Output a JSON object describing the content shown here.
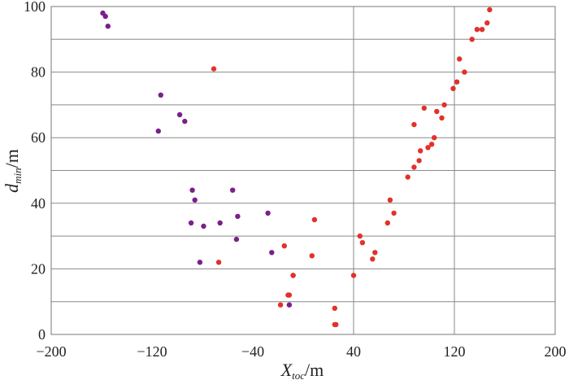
{
  "chart_data": {
    "type": "scatter",
    "title": "",
    "xlabel": {
      "main": "X",
      "sub": "toc",
      "unit": "/m"
    },
    "ylabel": {
      "main": "d",
      "sub": "min",
      "unit": "/m"
    },
    "xlim": [
      -200,
      200
    ],
    "ylim": [
      0,
      100
    ],
    "x_ticks": [
      -200,
      -120,
      -40,
      40,
      120,
      200
    ],
    "x_tick_labels": [
      "−200",
      "−120",
      "−40",
      "40",
      "120",
      "200"
    ],
    "y_ticks": [
      0,
      20,
      40,
      60,
      80,
      100
    ],
    "y_tick_labels": [
      "0",
      "20",
      "40",
      "60",
      "80",
      "100"
    ],
    "grid": {
      "horizontal_every": 10,
      "vertical_at": [
        40,
        120
      ]
    },
    "series": [
      {
        "color": "#7b1f8c",
        "points": [
          [
            -159,
            98
          ],
          [
            -157,
            97
          ],
          [
            -155,
            94
          ],
          [
            -113,
            73
          ],
          [
            -115,
            62
          ],
          [
            -98,
            67
          ],
          [
            -94,
            65
          ],
          [
            -88,
            44
          ],
          [
            -86,
            41
          ],
          [
            -89,
            34
          ],
          [
            -82,
            22
          ],
          [
            -79,
            33
          ],
          [
            -66,
            34
          ],
          [
            -56,
            44
          ],
          [
            -52,
            36
          ],
          [
            -53,
            29
          ],
          [
            -28,
            37
          ],
          [
            -25,
            25
          ],
          [
            -11,
            9
          ]
        ]
      },
      {
        "color": "#e2312b",
        "points": [
          [
            -71,
            81
          ],
          [
            -67,
            22
          ],
          [
            -15,
            27
          ],
          [
            -18,
            9
          ],
          [
            -8,
            18
          ],
          [
            -8,
            18
          ],
          [
            7,
            24
          ],
          [
            9,
            35
          ],
          [
            -11,
            12
          ],
          [
            -12,
            12
          ],
          [
            25,
            8
          ],
          [
            25,
            3
          ],
          [
            26,
            3
          ],
          [
            40,
            18
          ],
          [
            45,
            30
          ],
          [
            47,
            28
          ],
          [
            55,
            23
          ],
          [
            57,
            25
          ],
          [
            67,
            34
          ],
          [
            69,
            41
          ],
          [
            72,
            37
          ],
          [
            83,
            48
          ],
          [
            88,
            51
          ],
          [
            88,
            64
          ],
          [
            92,
            53
          ],
          [
            93,
            56
          ],
          [
            96,
            69
          ],
          [
            99,
            57
          ],
          [
            102,
            58
          ],
          [
            104,
            60
          ],
          [
            106,
            68
          ],
          [
            110,
            66
          ],
          [
            112,
            70
          ],
          [
            119,
            75
          ],
          [
            122,
            77
          ],
          [
            124,
            84
          ],
          [
            128,
            80
          ],
          [
            134,
            90
          ],
          [
            138,
            93
          ],
          [
            142,
            93
          ],
          [
            146,
            95
          ],
          [
            148,
            99
          ]
        ]
      }
    ]
  }
}
